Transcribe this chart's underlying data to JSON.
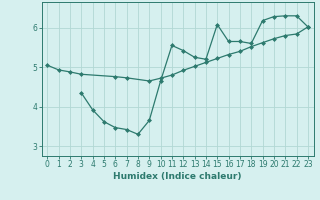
{
  "line1_x": [
    0,
    1,
    2,
    3,
    6,
    7,
    9,
    10,
    11,
    12,
    13,
    14,
    15,
    16,
    17,
    18,
    19,
    20,
    21,
    22,
    23
  ],
  "line1_y": [
    5.05,
    4.93,
    4.88,
    4.82,
    4.76,
    4.73,
    4.65,
    4.72,
    4.8,
    4.92,
    5.02,
    5.12,
    5.22,
    5.32,
    5.4,
    5.52,
    5.62,
    5.72,
    5.8,
    5.84,
    6.02
  ],
  "line2_x": [
    3,
    4,
    5,
    6,
    7,
    8,
    9,
    10,
    11,
    12,
    13,
    14,
    15,
    16,
    17,
    18,
    19,
    20,
    21,
    22,
    23
  ],
  "line2_y": [
    4.35,
    3.92,
    3.62,
    3.47,
    3.42,
    3.3,
    3.65,
    4.65,
    5.55,
    5.42,
    5.25,
    5.2,
    6.08,
    5.65,
    5.65,
    5.6,
    6.18,
    6.28,
    6.3,
    6.3,
    6.02
  ],
  "line_color": "#2d7a6e",
  "marker": "D",
  "marker_size": 2.0,
  "line_width": 0.9,
  "bg_color": "#d6f0ef",
  "grid_color": "#b2d8d4",
  "axis_color": "#2d7a6e",
  "xlabel": "Humidex (Indice chaleur)",
  "xlabel_fontsize": 6.5,
  "tick_fontsize": 5.5,
  "xlim": [
    -0.5,
    23.5
  ],
  "ylim": [
    2.75,
    6.65
  ],
  "yticks": [
    3,
    4,
    5,
    6
  ],
  "xticks": [
    0,
    1,
    2,
    3,
    4,
    5,
    6,
    7,
    8,
    9,
    10,
    11,
    12,
    13,
    14,
    15,
    16,
    17,
    18,
    19,
    20,
    21,
    22,
    23
  ]
}
